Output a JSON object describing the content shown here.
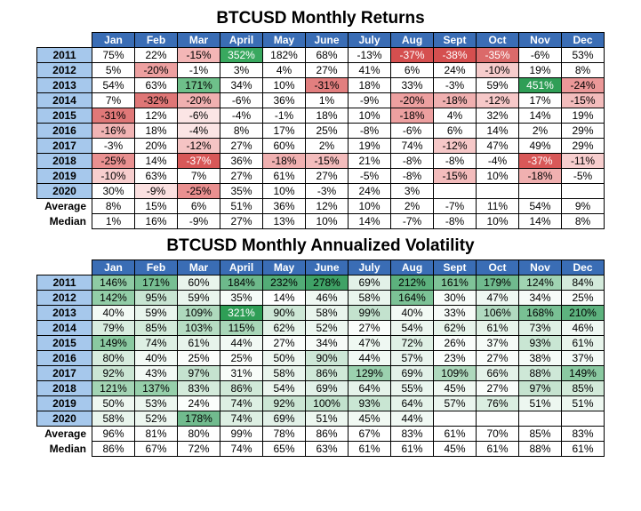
{
  "returns": {
    "title": "BTCUSD Monthly Returns",
    "months": [
      "Jan",
      "Feb",
      "Mar",
      "April",
      "May",
      "June",
      "July",
      "Aug",
      "Sept",
      "Oct",
      "Nov",
      "Dec"
    ],
    "years": [
      "2011",
      "2012",
      "2013",
      "2014",
      "2015",
      "2016",
      "2017",
      "2018",
      "2019",
      "2020"
    ],
    "rows": [
      [
        {
          "v": "75%",
          "c": "#ffffff"
        },
        {
          "v": "22%",
          "c": "#ffffff"
        },
        {
          "v": "-15%",
          "c": "#f3b6b6"
        },
        {
          "v": "352%",
          "c": "#39a85f",
          "t": "#fff"
        },
        {
          "v": "182%",
          "c": "#ffffff"
        },
        {
          "v": "68%",
          "c": "#ffffff"
        },
        {
          "v": "-13%",
          "c": "#ffffff"
        },
        {
          "v": "-37%",
          "c": "#d54f4f",
          "t": "#fff"
        },
        {
          "v": "-38%",
          "c": "#d54f4f",
          "t": "#fff"
        },
        {
          "v": "-35%",
          "c": "#db6a6a",
          "t": "#fff"
        },
        {
          "v": "-6%",
          "c": "#fff"
        },
        {
          "v": "53%",
          "c": "#fff"
        }
      ],
      [
        {
          "v": "5%",
          "c": "#fff"
        },
        {
          "v": "-20%",
          "c": "#eda0a0"
        },
        {
          "v": "-1%",
          "c": "#fff"
        },
        {
          "v": "3%",
          "c": "#fff"
        },
        {
          "v": "4%",
          "c": "#fff"
        },
        {
          "v": "27%",
          "c": "#fff"
        },
        {
          "v": "41%",
          "c": "#fff"
        },
        {
          "v": "6%",
          "c": "#fff"
        },
        {
          "v": "24%",
          "c": "#fff"
        },
        {
          "v": "-10%",
          "c": "#f6cccc"
        },
        {
          "v": "19%",
          "c": "#fff"
        },
        {
          "v": "8%",
          "c": "#fff"
        }
      ],
      [
        {
          "v": "54%",
          "c": "#fff"
        },
        {
          "v": "63%",
          "c": "#fff"
        },
        {
          "v": "171%",
          "c": "#6ec08a"
        },
        {
          "v": "34%",
          "c": "#fff"
        },
        {
          "v": "10%",
          "c": "#fff"
        },
        {
          "v": "-31%",
          "c": "#e27f7f"
        },
        {
          "v": "18%",
          "c": "#fff"
        },
        {
          "v": "33%",
          "c": "#fff"
        },
        {
          "v": "-3%",
          "c": "#fff"
        },
        {
          "v": "59%",
          "c": "#fff"
        },
        {
          "v": "451%",
          "c": "#2f9e56",
          "t": "#fff"
        },
        {
          "v": "-24%",
          "c": "#eb9898"
        }
      ],
      [
        {
          "v": "7%",
          "c": "#fff"
        },
        {
          "v": "-32%",
          "c": "#df7676"
        },
        {
          "v": "-20%",
          "c": "#f0b0b0"
        },
        {
          "v": "-6%",
          "c": "#fff"
        },
        {
          "v": "36%",
          "c": "#fff"
        },
        {
          "v": "1%",
          "c": "#fff"
        },
        {
          "v": "-9%",
          "c": "#fff"
        },
        {
          "v": "-20%",
          "c": "#eda0a0"
        },
        {
          "v": "-18%",
          "c": "#f0b0b0"
        },
        {
          "v": "-12%",
          "c": "#f6c8c8"
        },
        {
          "v": "17%",
          "c": "#fff"
        },
        {
          "v": "-15%",
          "c": "#f3bcbc"
        }
      ],
      [
        {
          "v": "-31%",
          "c": "#e07878"
        },
        {
          "v": "12%",
          "c": "#fff"
        },
        {
          "v": "-6%",
          "c": "#fbe5e5"
        },
        {
          "v": "-4%",
          "c": "#fff"
        },
        {
          "v": "-1%",
          "c": "#fff"
        },
        {
          "v": "18%",
          "c": "#fff"
        },
        {
          "v": "10%",
          "c": "#fff"
        },
        {
          "v": "-18%",
          "c": "#eda0a0"
        },
        {
          "v": "4%",
          "c": "#fff"
        },
        {
          "v": "32%",
          "c": "#fff"
        },
        {
          "v": "14%",
          "c": "#fff"
        },
        {
          "v": "19%",
          "c": "#fff"
        }
      ],
      [
        {
          "v": "-16%",
          "c": "#f1b4b4"
        },
        {
          "v": "18%",
          "c": "#fff"
        },
        {
          "v": "-4%",
          "c": "#fbe5e5"
        },
        {
          "v": "8%",
          "c": "#fff"
        },
        {
          "v": "17%",
          "c": "#fff"
        },
        {
          "v": "25%",
          "c": "#fff"
        },
        {
          "v": "-8%",
          "c": "#fff"
        },
        {
          "v": "-6%",
          "c": "#fff"
        },
        {
          "v": "6%",
          "c": "#fff"
        },
        {
          "v": "14%",
          "c": "#fff"
        },
        {
          "v": "2%",
          "c": "#fff"
        },
        {
          "v": "29%",
          "c": "#fff"
        }
      ],
      [
        {
          "v": "-3%",
          "c": "#fff"
        },
        {
          "v": "20%",
          "c": "#fff"
        },
        {
          "v": "-12%",
          "c": "#f5c4c4"
        },
        {
          "v": "27%",
          "c": "#fff"
        },
        {
          "v": "60%",
          "c": "#fff"
        },
        {
          "v": "2%",
          "c": "#fff"
        },
        {
          "v": "19%",
          "c": "#fff"
        },
        {
          "v": "74%",
          "c": "#fff"
        },
        {
          "v": "-12%",
          "c": "#f6c8c8"
        },
        {
          "v": "47%",
          "c": "#fff"
        },
        {
          "v": "49%",
          "c": "#fff"
        },
        {
          "v": "29%",
          "c": "#fff"
        }
      ],
      [
        {
          "v": "-25%",
          "c": "#e99090"
        },
        {
          "v": "14%",
          "c": "#fff"
        },
        {
          "v": "-37%",
          "c": "#d85858",
          "t": "#fff"
        },
        {
          "v": "36%",
          "c": "#fff"
        },
        {
          "v": "-18%",
          "c": "#f0b0b0"
        },
        {
          "v": "-15%",
          "c": "#f3bcbc"
        },
        {
          "v": "21%",
          "c": "#fff"
        },
        {
          "v": "-8%",
          "c": "#fff"
        },
        {
          "v": "-8%",
          "c": "#fff"
        },
        {
          "v": "-4%",
          "c": "#fff"
        },
        {
          "v": "-37%",
          "c": "#d85858",
          "t": "#fff"
        },
        {
          "v": "-11%",
          "c": "#f7cece"
        }
      ],
      [
        {
          "v": "-10%",
          "c": "#f7cece"
        },
        {
          "v": "63%",
          "c": "#fff"
        },
        {
          "v": "7%",
          "c": "#fff"
        },
        {
          "v": "27%",
          "c": "#fff"
        },
        {
          "v": "61%",
          "c": "#fff"
        },
        {
          "v": "27%",
          "c": "#fff"
        },
        {
          "v": "-5%",
          "c": "#fff"
        },
        {
          "v": "-8%",
          "c": "#fff"
        },
        {
          "v": "-15%",
          "c": "#f3bcbc"
        },
        {
          "v": "10%",
          "c": "#fff"
        },
        {
          "v": "-18%",
          "c": "#f0b0b0"
        },
        {
          "v": "-5%",
          "c": "#fff"
        }
      ],
      [
        {
          "v": "30%",
          "c": "#fff"
        },
        {
          "v": "-9%",
          "c": "#fbe0e0"
        },
        {
          "v": "-25%",
          "c": "#e99090"
        },
        {
          "v": "35%",
          "c": "#fff"
        },
        {
          "v": "10%",
          "c": "#fff"
        },
        {
          "v": "-3%",
          "c": "#fff"
        },
        {
          "v": "24%",
          "c": "#fff"
        },
        {
          "v": "3%",
          "c": "#fff"
        },
        {
          "v": "",
          "c": "#fff"
        },
        {
          "v": "",
          "c": "#fff"
        },
        {
          "v": "",
          "c": "#fff"
        },
        {
          "v": "",
          "c": "#fff"
        }
      ]
    ],
    "avg": [
      "8%",
      "15%",
      "6%",
      "51%",
      "36%",
      "12%",
      "10%",
      "2%",
      "-7%",
      "11%",
      "54%",
      "9%"
    ],
    "med": [
      "1%",
      "16%",
      "-9%",
      "27%",
      "13%",
      "10%",
      "14%",
      "-7%",
      "-8%",
      "10%",
      "14%",
      "8%"
    ],
    "avg_label": "Average",
    "med_label": "Median"
  },
  "vol": {
    "title": "BTCUSD Monthly Annualized Volatility",
    "months": [
      "Jan",
      "Feb",
      "Mar",
      "April",
      "May",
      "June",
      "July",
      "Aug",
      "Sept",
      "Oct",
      "Nov",
      "Dec"
    ],
    "years": [
      "2011",
      "2012",
      "2013",
      "2014",
      "2015",
      "2016",
      "2017",
      "2018",
      "2019",
      "2020"
    ],
    "rows": [
      [
        {
          "v": "146%",
          "c": "#8ecba4"
        },
        {
          "v": "171%",
          "c": "#77bf93"
        },
        {
          "v": "60%",
          "c": "#e8f4ec"
        },
        {
          "v": "184%",
          "c": "#6db98b"
        },
        {
          "v": "232%",
          "c": "#52ac76"
        },
        {
          "v": "278%",
          "c": "#3fa266"
        },
        {
          "v": "69%",
          "c": "#e2f1e8"
        },
        {
          "v": "212%",
          "c": "#5cb17d"
        },
        {
          "v": "161%",
          "c": "#7fc398"
        },
        {
          "v": "179%",
          "c": "#70ba8e"
        },
        {
          "v": "124%",
          "c": "#a0d3b2"
        },
        {
          "v": "84%",
          "c": "#d3eadb"
        }
      ],
      [
        {
          "v": "142%",
          "c": "#92cda7"
        },
        {
          "v": "95%",
          "c": "#c8e5d2"
        },
        {
          "v": "59%",
          "c": "#e9f5ed"
        },
        {
          "v": "35%",
          "c": "#f6fbf8"
        },
        {
          "v": "14%",
          "c": "#fff"
        },
        {
          "v": "46%",
          "c": "#f0f8f3"
        },
        {
          "v": "58%",
          "c": "#e9f5ed"
        },
        {
          "v": "164%",
          "c": "#7cc296"
        },
        {
          "v": "30%",
          "c": "#f8fcf9"
        },
        {
          "v": "47%",
          "c": "#eff8f2"
        },
        {
          "v": "34%",
          "c": "#f7fbf8"
        },
        {
          "v": "25%",
          "c": "#fbfdfb"
        }
      ],
      [
        {
          "v": "40%",
          "c": "#f3faf5"
        },
        {
          "v": "59%",
          "c": "#e9f5ed"
        },
        {
          "v": "109%",
          "c": "#aed9bd"
        },
        {
          "v": "321%",
          "c": "#2f9e56",
          "t": "#fff"
        },
        {
          "v": "90%",
          "c": "#cde7d6"
        },
        {
          "v": "58%",
          "c": "#e9f5ed"
        },
        {
          "v": "99%",
          "c": "#c3e2ce"
        },
        {
          "v": "40%",
          "c": "#f3faf5"
        },
        {
          "v": "33%",
          "c": "#f7fbf8"
        },
        {
          "v": "106%",
          "c": "#b1dac0"
        },
        {
          "v": "168%",
          "c": "#79c094"
        },
        {
          "v": "210%",
          "c": "#5db27e"
        }
      ],
      [
        {
          "v": "79%",
          "c": "#d8ecdf"
        },
        {
          "v": "85%",
          "c": "#d2ead9"
        },
        {
          "v": "103%",
          "c": "#b6ddc3"
        },
        {
          "v": "115%",
          "c": "#a8d6b8"
        },
        {
          "v": "62%",
          "c": "#e7f4eb"
        },
        {
          "v": "52%",
          "c": "#edf7f0"
        },
        {
          "v": "27%",
          "c": "#fafdfb"
        },
        {
          "v": "54%",
          "c": "#ecf6ef"
        },
        {
          "v": "62%",
          "c": "#e7f4eb"
        },
        {
          "v": "61%",
          "c": "#e7f4eb"
        },
        {
          "v": "73%",
          "c": "#def0e4"
        },
        {
          "v": "46%",
          "c": "#f0f8f3"
        }
      ],
      [
        {
          "v": "149%",
          "c": "#8ac9a1"
        },
        {
          "v": "74%",
          "c": "#ddefe3"
        },
        {
          "v": "61%",
          "c": "#e7f4eb"
        },
        {
          "v": "44%",
          "c": "#f1f9f4"
        },
        {
          "v": "27%",
          "c": "#fafdfb"
        },
        {
          "v": "34%",
          "c": "#f7fbf8"
        },
        {
          "v": "47%",
          "c": "#eff8f2"
        },
        {
          "v": "72%",
          "c": "#dff0e5"
        },
        {
          "v": "26%",
          "c": "#fafdfb"
        },
        {
          "v": "37%",
          "c": "#f5fbf7"
        },
        {
          "v": "93%",
          "c": "#c9e6d3"
        },
        {
          "v": "61%",
          "c": "#e7f4eb"
        }
      ],
      [
        {
          "v": "80%",
          "c": "#d7ecde"
        },
        {
          "v": "40%",
          "c": "#f3faf5"
        },
        {
          "v": "25%",
          "c": "#fbfdfb"
        },
        {
          "v": "25%",
          "c": "#fbfdfb"
        },
        {
          "v": "50%",
          "c": "#eef7f1"
        },
        {
          "v": "90%",
          "c": "#cde7d6"
        },
        {
          "v": "44%",
          "c": "#f1f9f4"
        },
        {
          "v": "57%",
          "c": "#eaf5ee"
        },
        {
          "v": "23%",
          "c": "#fbfefc"
        },
        {
          "v": "27%",
          "c": "#fafdfb"
        },
        {
          "v": "38%",
          "c": "#f5fbf7"
        },
        {
          "v": "37%",
          "c": "#f5fbf7"
        }
      ],
      [
        {
          "v": "92%",
          "c": "#cbe6d4"
        },
        {
          "v": "43%",
          "c": "#f2f9f4"
        },
        {
          "v": "97%",
          "c": "#c5e3cf"
        },
        {
          "v": "31%",
          "c": "#f8fcf9"
        },
        {
          "v": "58%",
          "c": "#e9f5ed"
        },
        {
          "v": "86%",
          "c": "#d0e9d8"
        },
        {
          "v": "129%",
          "c": "#9bd1af"
        },
        {
          "v": "69%",
          "c": "#e2f1e8"
        },
        {
          "v": "109%",
          "c": "#aed9bd"
        },
        {
          "v": "66%",
          "c": "#e4f2e9"
        },
        {
          "v": "88%",
          "c": "#cee8d7"
        },
        {
          "v": "149%",
          "c": "#8ac9a1"
        }
      ],
      [
        {
          "v": "121%",
          "c": "#a3d4b4"
        },
        {
          "v": "137%",
          "c": "#96cfaa"
        },
        {
          "v": "83%",
          "c": "#d4ebdb"
        },
        {
          "v": "86%",
          "c": "#d0e9d8"
        },
        {
          "v": "54%",
          "c": "#ecf6ef"
        },
        {
          "v": "69%",
          "c": "#e2f1e8"
        },
        {
          "v": "64%",
          "c": "#e5f3ea"
        },
        {
          "v": "55%",
          "c": "#ebf6ef"
        },
        {
          "v": "45%",
          "c": "#f1f9f3"
        },
        {
          "v": "27%",
          "c": "#fafdfb"
        },
        {
          "v": "97%",
          "c": "#c5e3cf"
        },
        {
          "v": "85%",
          "c": "#d2ead9"
        }
      ],
      [
        {
          "v": "50%",
          "c": "#eef7f1"
        },
        {
          "v": "53%",
          "c": "#ecf6ef"
        },
        {
          "v": "24%",
          "c": "#fbfefc"
        },
        {
          "v": "74%",
          "c": "#ddefe3"
        },
        {
          "v": "92%",
          "c": "#cbe6d4"
        },
        {
          "v": "100%",
          "c": "#c2e2cd"
        },
        {
          "v": "93%",
          "c": "#c9e6d3"
        },
        {
          "v": "64%",
          "c": "#e5f3ea"
        },
        {
          "v": "57%",
          "c": "#eaf5ee"
        },
        {
          "v": "76%",
          "c": "#dbeee1"
        },
        {
          "v": "51%",
          "c": "#edf7f0"
        },
        {
          "v": "51%",
          "c": "#edf7f0"
        }
      ],
      [
        {
          "v": "58%",
          "c": "#e9f5ed"
        },
        {
          "v": "52%",
          "c": "#edf7f0"
        },
        {
          "v": "178%",
          "c": "#71bb8e"
        },
        {
          "v": "74%",
          "c": "#ddefe3"
        },
        {
          "v": "69%",
          "c": "#e2f1e8"
        },
        {
          "v": "51%",
          "c": "#edf7f0"
        },
        {
          "v": "45%",
          "c": "#f1f9f3"
        },
        {
          "v": "44%",
          "c": "#f1f9f4"
        },
        {
          "v": "",
          "c": "#fff"
        },
        {
          "v": "",
          "c": "#fff"
        },
        {
          "v": "",
          "c": "#fff"
        },
        {
          "v": "",
          "c": "#fff"
        }
      ]
    ],
    "avg": [
      "96%",
      "81%",
      "80%",
      "99%",
      "78%",
      "86%",
      "67%",
      "83%",
      "61%",
      "70%",
      "85%",
      "83%"
    ],
    "med": [
      "86%",
      "67%",
      "72%",
      "74%",
      "65%",
      "63%",
      "61%",
      "61%",
      "45%",
      "61%",
      "88%",
      "61%"
    ],
    "avg_label": "Average",
    "med_label": "Median"
  }
}
